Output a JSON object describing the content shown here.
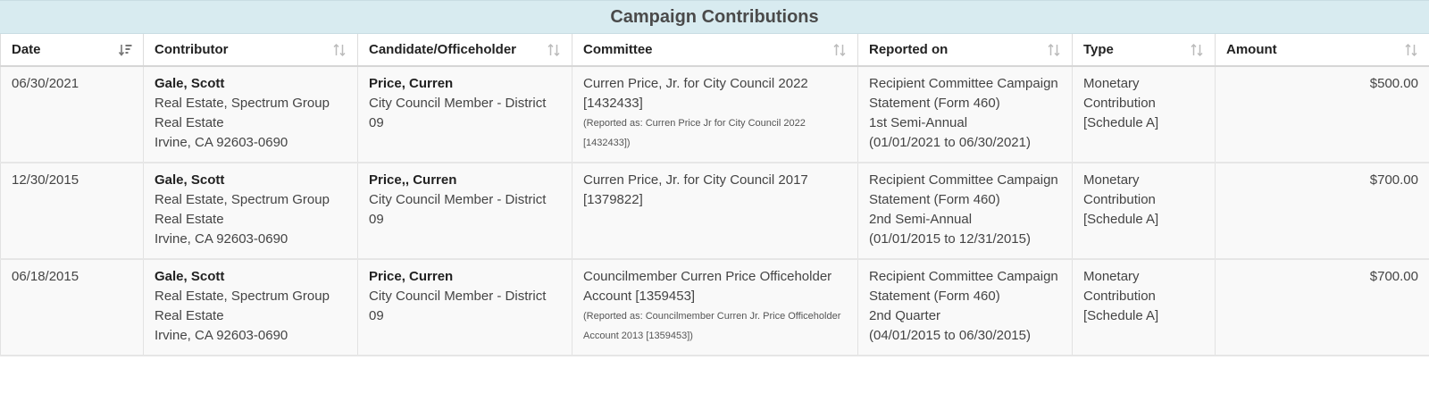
{
  "title": "Campaign Contributions",
  "columns": [
    "Date",
    "Contributor",
    "Candidate/Officeholder",
    "Committee",
    "Reported on",
    "Type",
    "Amount"
  ],
  "rows": [
    {
      "date": "06/30/2021",
      "contributor_name": "Gale, Scott",
      "contributor_employer": "Real Estate, Spectrum Group",
      "contributor_occupation": "Real Estate",
      "contributor_location": "Irvine, CA 92603-0690",
      "candidate_name": "Price, Curren",
      "candidate_office": "City Council Member - District 09",
      "committee": "Curren Price, Jr. for City Council 2022 [1432433]",
      "committee_reported_as": "(Reported as: Curren Price Jr for City Council 2022 [1432433])",
      "reported_form": "Recipient Committee Campaign Statement (Form 460)",
      "reported_period": "1st Semi-Annual",
      "reported_dates": "(01/01/2021 to 06/30/2021)",
      "type": "Monetary Contribution [Schedule A]",
      "amount": "$500.00"
    },
    {
      "date": "12/30/2015",
      "contributor_name": "Gale, Scott",
      "contributor_employer": "Real Estate, Spectrum Group",
      "contributor_occupation": "Real Estate",
      "contributor_location": "Irvine, CA 92603-0690",
      "candidate_name": "Price,, Curren",
      "candidate_office": "City Council Member - District 09",
      "committee": "Curren Price, Jr. for City Council 2017 [1379822]",
      "committee_reported_as": "",
      "reported_form": "Recipient Committee Campaign Statement (Form 460)",
      "reported_period": "2nd Semi-Annual",
      "reported_dates": "(01/01/2015 to 12/31/2015)",
      "type": "Monetary Contribution [Schedule A]",
      "amount": "$700.00"
    },
    {
      "date": "06/18/2015",
      "contributor_name": "Gale, Scott",
      "contributor_employer": "Real Estate, Spectrum Group",
      "contributor_occupation": "Real Estate",
      "contributor_location": "Irvine, CA 92603-0690",
      "candidate_name": "Price, Curren",
      "candidate_office": "City Council Member - District 09",
      "committee": "Councilmember Curren Price Officeholder Account [1359453]",
      "committee_reported_as": "(Reported as: Councilmember Curren Jr. Price Officeholder Account 2013 [1359453])",
      "reported_form": "Recipient Committee Campaign Statement (Form 460)",
      "reported_period": "2nd Quarter",
      "reported_dates": "(04/01/2015 to 06/30/2015)",
      "type": "Monetary Contribution [Schedule A]",
      "amount": "$700.00"
    }
  ],
  "icons": {
    "active_sort": "sort-descending-icon",
    "inactive_sort": "sort-both-icon"
  },
  "colors": {
    "caption_bg": "#d8ebf0",
    "row_bg": "#f9f9f9",
    "border": "#dddddd"
  }
}
